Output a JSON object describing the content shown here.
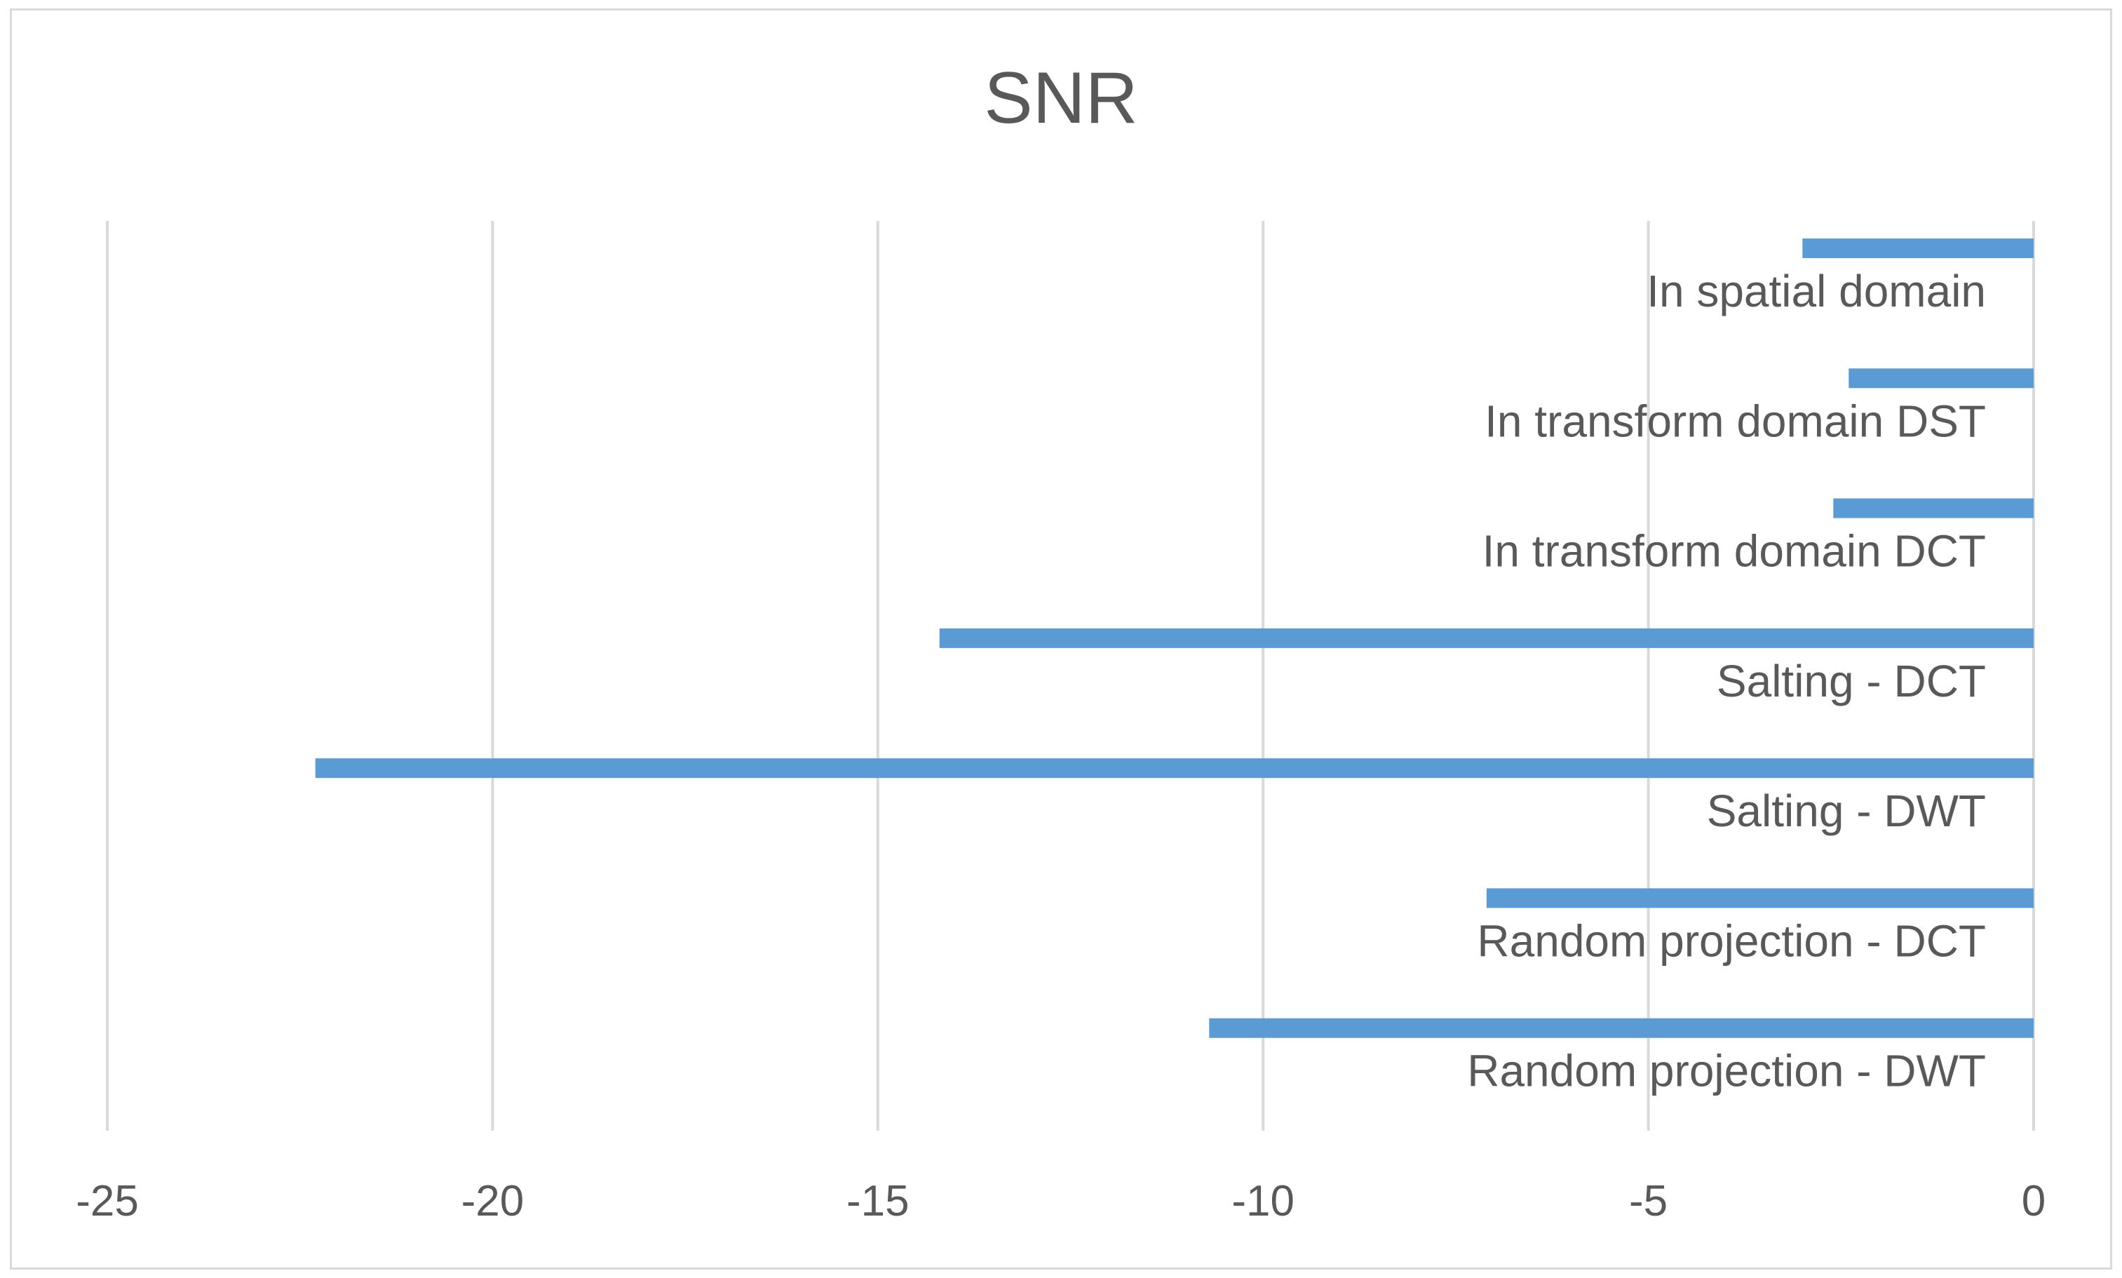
{
  "chart_data": {
    "type": "bar",
    "orientation": "horizontal",
    "title": "SNR",
    "xlabel": "",
    "ylabel": "",
    "categories": [
      "In spatial domain",
      "In transform domain  DST",
      "In transform domain  DCT",
      "Salting - DCT",
      "Salting - DWT",
      "Random projection - DCT",
      "Random projection - DWT"
    ],
    "values": [
      -3.0,
      -2.4,
      -2.6,
      -14.2,
      -22.3,
      -7.1,
      -10.7
    ],
    "xlim": [
      -25,
      0
    ],
    "xticks": [
      "-25",
      "-20",
      "-15",
      "-10",
      "-5",
      "0"
    ],
    "xtick_values": [
      -25,
      -20,
      -15,
      -10,
      -5,
      0
    ],
    "grid": true,
    "legend": "none",
    "bar_color": "#5b9bd5",
    "grid_color": "#d9d9d9",
    "text_color": "#595959"
  }
}
